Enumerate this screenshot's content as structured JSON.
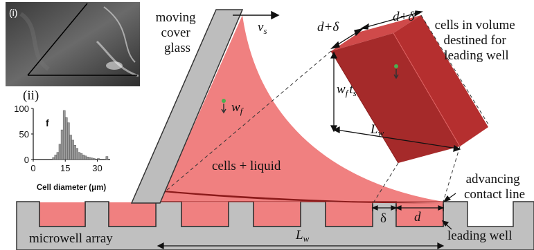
{
  "labels": {
    "moving_cover_glass": [
      "moving",
      "cover",
      "glass"
    ],
    "vs_main": "v",
    "vs_sub": "s",
    "wf_main": "w",
    "wf_sub": "f",
    "cells_liquid": "cells + liquid",
    "cells_volume": [
      "cells in volume",
      "destined for",
      "leading well"
    ],
    "d_plus_delta": "d+δ",
    "wf_ts_w": "w",
    "wf_ts_f": "f",
    "wf_ts_t": "t",
    "wf_ts_s": "s",
    "Lw_main": "L",
    "Lw_sub": "w",
    "advancing_contact_line": [
      "advancing",
      "contact line"
    ],
    "delta": "δ",
    "d": "d",
    "leading_well": "leading well",
    "microwell_array": "microwell array"
  },
  "inset_i": {
    "label": "(i)"
  },
  "inset_ii": {
    "label": "(ii)",
    "panel_letter": "f"
  },
  "chart_data": {
    "type": "bar",
    "xlabel": "Cell diameter (μm)",
    "ylabel": "",
    "xticks": [
      0,
      15,
      30
    ],
    "yticks": [
      0,
      50,
      100
    ],
    "xlim": [
      0,
      36
    ],
    "ylim": [
      0,
      100
    ],
    "bin_width": 1,
    "bins": [
      {
        "x": 9,
        "y": 4
      },
      {
        "x": 10,
        "y": 9
      },
      {
        "x": 11,
        "y": 14
      },
      {
        "x": 12,
        "y": 30
      },
      {
        "x": 13,
        "y": 58
      },
      {
        "x": 14,
        "y": 96
      },
      {
        "x": 15,
        "y": 82
      },
      {
        "x": 16,
        "y": 72
      },
      {
        "x": 17,
        "y": 48
      },
      {
        "x": 18,
        "y": 38
      },
      {
        "x": 19,
        "y": 28
      },
      {
        "x": 20,
        "y": 22
      },
      {
        "x": 21,
        "y": 14
      },
      {
        "x": 22,
        "y": 12
      },
      {
        "x": 23,
        "y": 9
      },
      {
        "x": 24,
        "y": 7
      },
      {
        "x": 25,
        "y": 5
      },
      {
        "x": 26,
        "y": 4
      },
      {
        "x": 27,
        "y": 3
      },
      {
        "x": 28,
        "y": 2
      },
      {
        "x": 30,
        "y": 2
      },
      {
        "x": 33,
        "y": 1
      },
      {
        "x": 34,
        "y": 6
      }
    ]
  },
  "colors": {
    "liquid": "#f08080",
    "glass": "#bdbdbd",
    "substrate": "#c0c0c0",
    "box_front": "#a52a2a",
    "box_side": "#c03535",
    "box_top": "#cf4a4a",
    "hist_bar": "#9a9a9a"
  }
}
